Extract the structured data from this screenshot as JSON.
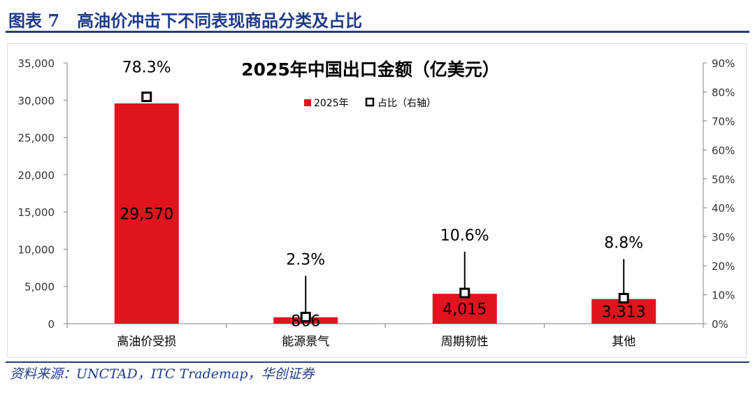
{
  "figure": {
    "label": "图表 7",
    "title": "高油价冲击下不同表现商品分类及占比"
  },
  "source": "资料来源：UNCTAD，ITC Trademap，华创证券",
  "colors": {
    "bar": "#e0141e",
    "title": "#1f3c88"
  },
  "chart_data": {
    "type": "bar",
    "title": "2025年中国出口金额（亿美元）",
    "categories": [
      "高油价受损",
      "能源景气",
      "周期韧性",
      "其他"
    ],
    "series": [
      {
        "name": "2025年",
        "type": "bar",
        "axis": "left",
        "values": [
          29570,
          866,
          4015,
          3313
        ],
        "labels": [
          "29,570",
          "866",
          "4,015",
          "3,313"
        ]
      },
      {
        "name": "占比（右轴）",
        "type": "scatter",
        "axis": "right",
        "values": [
          78.3,
          2.3,
          10.6,
          8.8
        ],
        "labels": [
          "78.3%",
          "2.3%",
          "10.6%",
          "8.8%"
        ]
      }
    ],
    "y_left": {
      "min": 0,
      "max": 35000,
      "step": 5000,
      "ticks": [
        "0",
        "5,000",
        "10,000",
        "15,000",
        "20,000",
        "25,000",
        "30,000",
        "35,000"
      ]
    },
    "y_right": {
      "min": 0,
      "max": 90,
      "step": 10,
      "ticks": [
        "0%",
        "10%",
        "20%",
        "30%",
        "40%",
        "50%",
        "60%",
        "70%",
        "80%",
        "90%"
      ]
    },
    "legend": {
      "position": "top-center",
      "items": [
        "2025年",
        "占比（右轴）"
      ]
    },
    "grid": false
  }
}
